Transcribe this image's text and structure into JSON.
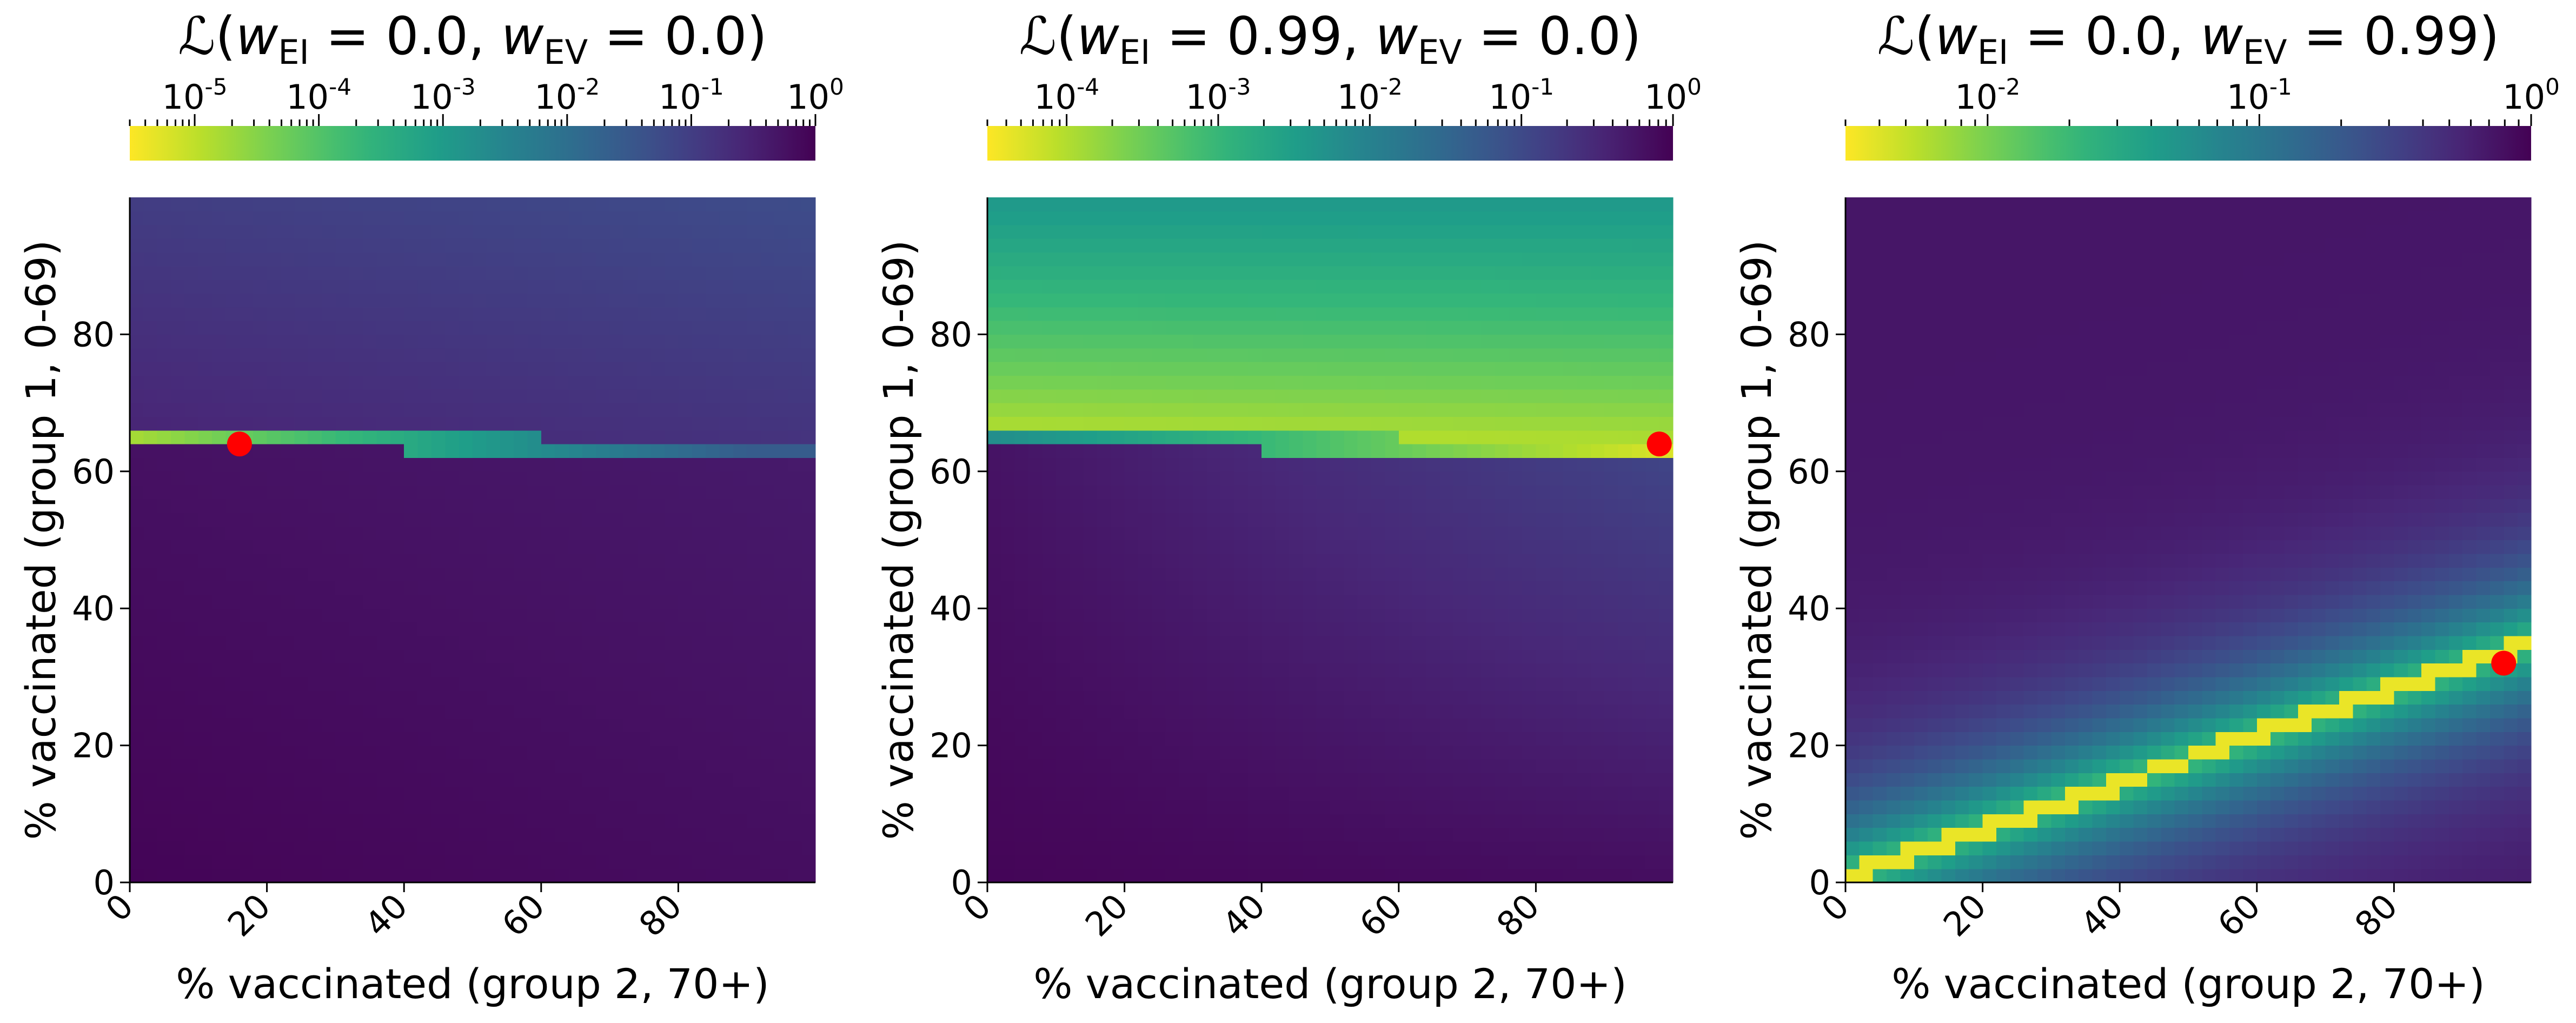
{
  "chart_data": [
    {
      "type": "heatmap",
      "title_prefix": "ℒ(",
      "title_parts": [
        {
          "text": "w",
          "italic": true
        },
        {
          "text": "EI",
          "sub": true
        },
        {
          "text": " = 0.0, "
        },
        {
          "text": "w",
          "italic": true
        },
        {
          "text": "EV",
          "sub": true
        },
        {
          "text": " = 0.0)"
        }
      ],
      "w_EI": 0.0,
      "w_EV": 0.0,
      "xlabel": "% vaccinated (group 2, 70+)",
      "ylabel": "% vaccinated (group 1, 0-69)",
      "xlim": [
        0,
        100
      ],
      "ylim": [
        0,
        100
      ],
      "xticks": [
        0,
        20,
        40,
        60,
        80
      ],
      "yticks": [
        0,
        20,
        40,
        60,
        80
      ],
      "colorbar": {
        "scale": "log",
        "range": [
          3e-06,
          1
        ],
        "ticks": [
          "10-5",
          "10-4",
          "10-3",
          "10-2",
          "10-1",
          "100"
        ],
        "tick_exponents": [
          -5,
          -4,
          -3,
          -2,
          -1,
          0
        ],
        "colormap": "viridis_r"
      },
      "optimum": {
        "x": 16,
        "y": 64,
        "color": "#ff0000"
      },
      "pattern": "horizontal-band",
      "band": {
        "y_left": 65,
        "y_right": 63
      }
    },
    {
      "type": "heatmap",
      "title_prefix": "ℒ(",
      "title_parts": [
        {
          "text": "w",
          "italic": true
        },
        {
          "text": "EI",
          "sub": true
        },
        {
          "text": " = 0.99, "
        },
        {
          "text": "w",
          "italic": true
        },
        {
          "text": "EV",
          "sub": true
        },
        {
          "text": " = 0.0)"
        }
      ],
      "w_EI": 0.99,
      "w_EV": 0.0,
      "xlabel": "% vaccinated (group 2, 70+)",
      "ylabel": "% vaccinated (group 1, 0-69)",
      "xlim": [
        0,
        100
      ],
      "ylim": [
        0,
        100
      ],
      "xticks": [
        0,
        20,
        40,
        60,
        80
      ],
      "yticks": [
        0,
        20,
        40,
        60,
        80
      ],
      "colorbar": {
        "scale": "log",
        "range": [
          3e-05,
          1
        ],
        "ticks": [
          "10-4",
          "10-3",
          "10-2",
          "10-1",
          "100"
        ],
        "tick_exponents": [
          -4,
          -3,
          -2,
          -1,
          0
        ],
        "colormap": "viridis_r"
      },
      "optimum": {
        "x": 98,
        "y": 64,
        "color": "#ff0000"
      },
      "pattern": "upper-gradient",
      "band": {
        "y_left": 65,
        "y_right": 63
      }
    },
    {
      "type": "heatmap",
      "title_prefix": "ℒ(",
      "title_parts": [
        {
          "text": "w",
          "italic": true
        },
        {
          "text": "EI",
          "sub": true
        },
        {
          "text": " = 0.0, "
        },
        {
          "text": "w",
          "italic": true
        },
        {
          "text": "EV",
          "sub": true
        },
        {
          "text": " = 0.99)"
        }
      ],
      "w_EI": 0.0,
      "w_EV": 0.99,
      "xlabel": "% vaccinated (group 2, 70+)",
      "ylabel": "% vaccinated (group 1, 0-69)",
      "xlim": [
        0,
        100
      ],
      "ylim": [
        0,
        100
      ],
      "xticks": [
        0,
        20,
        40,
        60,
        80
      ],
      "yticks": [
        0,
        20,
        40,
        60,
        80
      ],
      "colorbar": {
        "scale": "log",
        "range": [
          0.003,
          1
        ],
        "ticks": [
          "10-2",
          "10-1",
          "100"
        ],
        "tick_exponents": [
          -2,
          -1,
          0
        ],
        "colormap": "viridis_r"
      },
      "optimum": {
        "x": 96,
        "y": 32,
        "color": "#ff0000"
      },
      "pattern": "diagonal-band",
      "band": {
        "y_left": 1,
        "y_right": 35
      }
    }
  ]
}
